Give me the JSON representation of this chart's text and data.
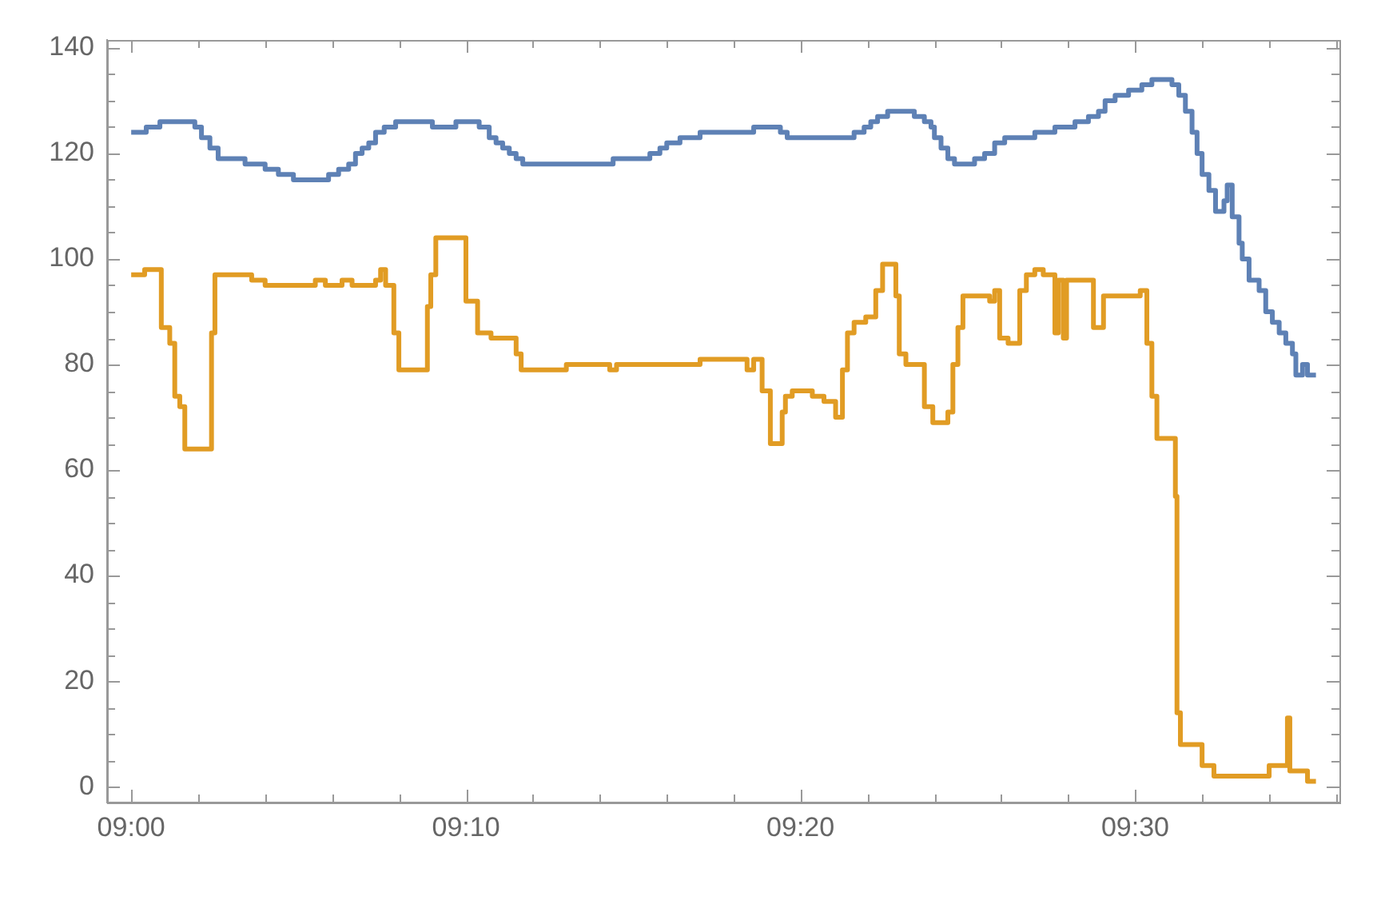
{
  "chart_data": {
    "type": "step",
    "xlim": [
      8.988,
      9.6017
    ],
    "ylim": [
      -3,
      141.5
    ],
    "xticks": [
      {
        "value": 9,
        "label": "09:00"
      },
      {
        "value": 9.0333,
        "label": null
      },
      {
        "value": 9.0667,
        "label": null
      },
      {
        "value": 9.1,
        "label": null
      },
      {
        "value": 9.1333,
        "label": null
      },
      {
        "value": 9.1667,
        "label": "09:10"
      },
      {
        "value": 9.2,
        "label": null
      },
      {
        "value": 9.2333,
        "label": null
      },
      {
        "value": 9.2667,
        "label": null
      },
      {
        "value": 9.3,
        "label": null
      },
      {
        "value": 9.3333,
        "label": "09:20"
      },
      {
        "value": 9.3667,
        "label": null
      },
      {
        "value": 9.4,
        "label": null
      },
      {
        "value": 9.4333,
        "label": null
      },
      {
        "value": 9.4667,
        "label": null
      },
      {
        "value": 9.5,
        "label": "09:30"
      },
      {
        "value": 9.5333,
        "label": null
      },
      {
        "value": 9.5667,
        "label": null
      },
      {
        "value": 9.6,
        "label": null
      }
    ],
    "yticks": [
      0,
      {
        "value": 5,
        "label": null
      },
      {
        "value": 10,
        "label": null
      },
      {
        "value": 15,
        "label": null
      },
      20,
      {
        "value": 25,
        "label": null
      },
      {
        "value": 30,
        "label": null
      },
      {
        "value": 35,
        "label": null
      },
      40,
      {
        "value": 45,
        "label": null
      },
      {
        "value": 50,
        "label": null
      },
      {
        "value": 55,
        "label": null
      },
      60,
      {
        "value": 65,
        "label": null
      },
      {
        "value": 70,
        "label": null
      },
      {
        "value": 75,
        "label": null
      },
      80,
      {
        "value": 85,
        "label": null
      },
      {
        "value": 90,
        "label": null
      },
      {
        "value": 95,
        "label": null
      },
      100,
      {
        "value": 105,
        "label": null
      },
      {
        "value": 110,
        "label": null
      },
      {
        "value": 115,
        "label": null
      },
      120,
      {
        "value": 125,
        "label": null
      },
      {
        "value": 130,
        "label": null
      },
      {
        "value": 135,
        "label": null
      },
      140
    ],
    "grid": false,
    "legend": false,
    "marker": "none",
    "line_style": "solid",
    "series": [
      {
        "color": "#5e81b5",
        "x": [
          9,
          9.0075,
          9.0143,
          9.0317,
          9.035,
          9.0392,
          9.0433,
          9.0567,
          9.0667,
          9.0733,
          9.0808,
          9.0983,
          9.1033,
          9.1083,
          9.1117,
          9.115,
          9.1183,
          9.1217,
          9.126,
          9.1317,
          9.15,
          9.1617,
          9.1733,
          9.1783,
          9.1817,
          9.185,
          9.1883,
          9.1917,
          9.195,
          9.24,
          9.2583,
          9.2633,
          9.2667,
          9.2733,
          9.2833,
          9.31,
          9.3233,
          9.3267,
          9.36,
          9.365,
          9.3683,
          9.3717,
          9.3767,
          9.39,
          9.395,
          9.3983,
          9.4,
          9.4033,
          9.4067,
          9.41,
          9.42,
          9.425,
          9.43,
          9.435,
          9.45,
          9.46,
          9.47,
          9.4767,
          9.4817,
          9.485,
          9.49,
          9.4967,
          9.5033,
          9.5083,
          9.5183,
          9.5217,
          9.525,
          9.5283,
          9.5308,
          9.5333,
          9.5367,
          9.54,
          9.5442,
          9.5458,
          9.5483,
          9.5517,
          9.5533,
          9.5567,
          9.5617,
          9.565,
          9.5683,
          9.5717,
          9.575,
          9.5783,
          9.58,
          9.5833,
          9.5858,
          9.59
        ],
        "values": [
          124,
          125,
          126,
          125,
          123,
          121,
          119,
          118,
          117,
          116,
          115,
          116,
          117,
          118,
          120,
          121,
          122,
          124,
          125,
          126,
          125,
          126,
          125,
          123,
          122,
          121,
          120,
          119,
          118,
          119,
          120,
          121,
          122,
          123,
          124,
          125,
          124,
          123,
          124,
          125,
          126,
          127,
          128,
          127,
          126,
          125,
          123,
          121,
          119,
          118,
          119,
          120,
          122,
          123,
          124,
          125,
          126,
          127,
          128,
          130,
          131,
          132,
          133,
          134,
          133,
          131,
          128,
          124,
          120,
          116,
          113,
          109,
          111,
          114,
          108,
          103,
          100,
          96,
          94,
          90,
          88,
          86,
          84,
          82,
          78,
          80,
          78,
          78
        ]
      },
      {
        "color": "#e19c24",
        "x": [
          9,
          9.0067,
          9.015,
          9.0192,
          9.0217,
          9.0242,
          9.0267,
          9.04,
          9.0417,
          9.06,
          9.0667,
          9.0917,
          9.0967,
          9.105,
          9.11,
          9.1217,
          9.1242,
          9.1267,
          9.1308,
          9.1333,
          9.1475,
          9.1492,
          9.1517,
          9.1667,
          9.1725,
          9.1792,
          9.1917,
          9.1942,
          9.2167,
          9.2383,
          9.2417,
          9.2833,
          9.3067,
          9.31,
          9.3142,
          9.3183,
          9.3242,
          9.3258,
          9.3292,
          9.3392,
          9.345,
          9.3508,
          9.3542,
          9.3567,
          9.36,
          9.3658,
          9.3708,
          9.3742,
          9.3808,
          9.3825,
          9.3858,
          9.395,
          9.3992,
          9.4067,
          9.4092,
          9.4117,
          9.4142,
          9.4275,
          9.43,
          9.4325,
          9.4367,
          9.4425,
          9.4458,
          9.45,
          9.4542,
          9.46,
          9.4617,
          9.4642,
          9.4658,
          9.4792,
          9.4842,
          9.5025,
          9.5058,
          9.5083,
          9.5108,
          9.52,
          9.5208,
          9.5225,
          9.5333,
          9.5392,
          9.5667,
          9.5758,
          9.577,
          9.5792,
          9.5858,
          9.59
        ],
        "values": [
          97,
          98,
          87,
          84,
          74,
          72,
          64,
          86,
          97,
          96,
          95,
          96,
          95,
          96,
          95,
          96,
          98,
          95,
          86,
          79,
          91,
          97,
          104,
          92,
          86,
          85,
          82,
          79,
          80,
          79,
          80,
          81,
          79,
          81,
          75,
          65,
          71,
          74,
          75,
          74,
          73,
          70,
          79,
          86,
          88,
          89,
          94,
          99,
          93,
          82,
          80,
          72,
          69,
          71,
          80,
          87,
          93,
          92,
          94,
          85,
          84,
          94,
          97,
          98,
          97,
          86,
          96,
          85,
          96,
          87,
          93,
          94,
          84,
          74,
          66,
          55,
          14,
          8,
          4,
          2,
          4,
          13,
          3,
          3,
          1,
          1
        ]
      }
    ]
  }
}
